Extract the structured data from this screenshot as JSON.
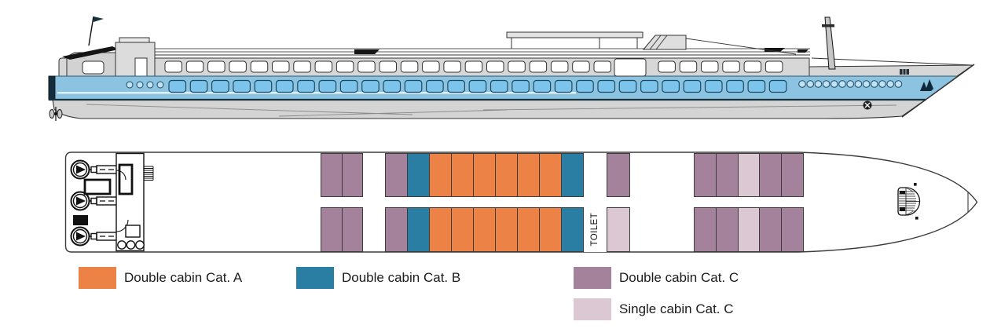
{
  "legend": {
    "items": [
      {
        "id": "cat-a",
        "label": "Double cabin Cat. A",
        "color": "#EC8246"
      },
      {
        "id": "cat-b",
        "label": "Double cabin Cat. B",
        "color": "#2A7EA3"
      },
      {
        "id": "cat-c",
        "label": "Double cabin Cat. C",
        "color": "#A5829B"
      },
      {
        "id": "cat-c-single",
        "label": "Single cabin Cat. C",
        "color": "#DCC8D3"
      }
    ]
  },
  "deck_plan": {
    "toilet_label": "TOILET",
    "category_colors": {
      "A": "#EC8246",
      "B": "#2A7EA3",
      "C": "#A5829B",
      "CS": "#DCC8D3"
    },
    "cabin_groups": [
      {
        "id": "aft-port",
        "row": "top",
        "cabins": [
          "C",
          "C"
        ]
      },
      {
        "id": "mid-port",
        "row": "top",
        "cabins": [
          "C",
          "B",
          "A",
          "A",
          "A",
          "A",
          "A",
          "A",
          "B"
        ]
      },
      {
        "id": "fwd-port",
        "row": "top",
        "cabins": [
          "C"
        ]
      },
      {
        "id": "bow-port",
        "row": "top",
        "cabins": [
          "C",
          "C",
          "CS",
          "C",
          "C"
        ]
      },
      {
        "id": "aft-starboard",
        "row": "bottom",
        "cabins": [
          "C",
          "C"
        ]
      },
      {
        "id": "mid-starboard",
        "row": "bottom",
        "cabins": [
          "C",
          "B",
          "A",
          "A",
          "A",
          "A",
          "A",
          "A",
          "B"
        ]
      },
      {
        "id": "fwd-starboard",
        "row": "bottom",
        "cabins": [
          "CS"
        ]
      },
      {
        "id": "bow-starboard",
        "row": "bottom",
        "cabins": [
          "C",
          "C",
          "CS",
          "C",
          "C"
        ]
      }
    ]
  },
  "ship_profile": {
    "hull_blue": "#8CC3E0",
    "window_blue": "#7DC4EC",
    "superstructure_gray": "#D7D7D7"
  }
}
